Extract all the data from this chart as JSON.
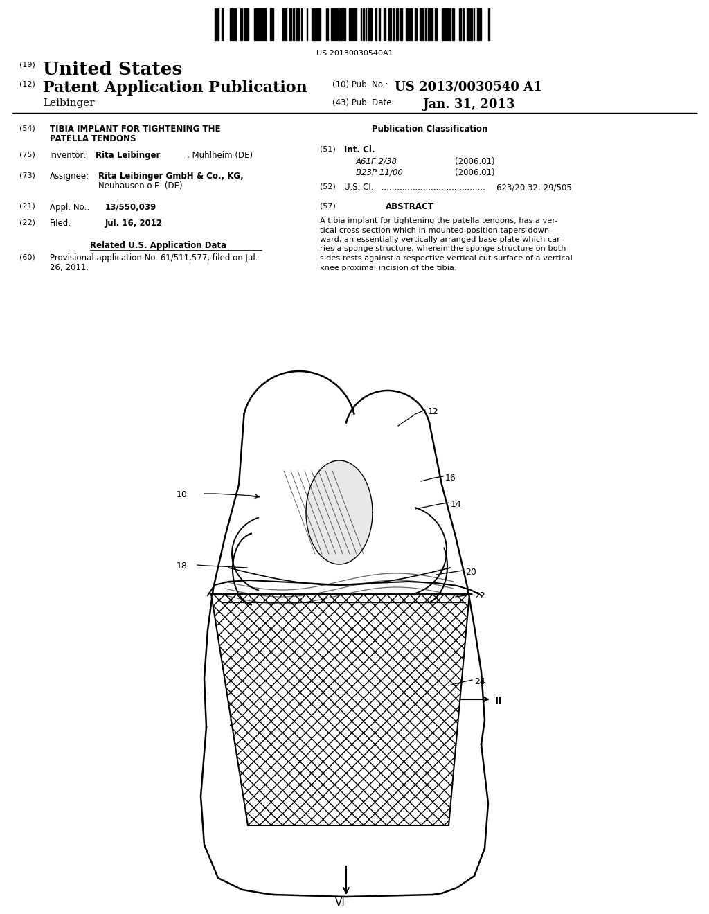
{
  "background_color": "#ffffff",
  "barcode_text": "US 20130030540A1",
  "line19": "(19)",
  "united_states": "United States",
  "line12": "(12)",
  "patent_app_pub": "Patent Application Publication",
  "line10": "(10) Pub. No.:",
  "pub_no": "US 2013/0030540 A1",
  "leibinger_name": "Leibinger",
  "line43": "(43) Pub. Date:",
  "pub_date": "Jan. 31, 2013",
  "line54_label": "(54)",
  "title54_line1": "TIBIA IMPLANT FOR TIGHTENING THE",
  "title54_line2": "PATELLA TENDONS",
  "line75_label": "(75)",
  "inventor_label": "Inventor:",
  "inventor_name": "Rita Leibinger",
  "inventor_loc": ", Muhlheim (DE)",
  "line73_label": "(73)",
  "assignee_label": "Assignee:",
  "assignee_name": "Rita Leibinger GmbH & Co., KG,",
  "assignee_loc": "Neuhausen o.E. (DE)",
  "line21_label": "(21)",
  "appl_no_label": "Appl. No.:",
  "appl_no": "13/550,039",
  "line22_label": "(22)",
  "filed_label": "Filed:",
  "filed_date": "Jul. 16, 2012",
  "related_us": "Related U.S. Application Data",
  "line60_label": "(60)",
  "provisional_line1": "Provisional application No. 61/511,577, filed on Jul.",
  "provisional_line2": "26, 2011.",
  "pub_class_label": "Publication Classification",
  "line51_label": "(51)",
  "int_cl_label": "Int. Cl.",
  "class1_code": "A61F 2/38",
  "class1_year": "(2006.01)",
  "class2_code": "B23P 11/00",
  "class2_year": "(2006.01)",
  "line52_label": "(52)",
  "us_cl_label": "U.S. Cl.",
  "us_cl_dots": " ........................................",
  "us_cl_value": "623/20.32; 29/505",
  "line57_label": "(57)",
  "abstract_label": "ABSTRACT",
  "abstract_lines": [
    "A tibia implant for tightening the patella tendons, has a ver-",
    "tical cross section which in mounted position tapers down-",
    "ward, an essentially vertically arranged base plate which car-",
    "ries a sponge structure, wherein the sponge structure on both",
    "sides rests against a respective vertical cut surface of a vertical",
    "knee proximal incision of the tibia."
  ],
  "text_color": "#000000"
}
